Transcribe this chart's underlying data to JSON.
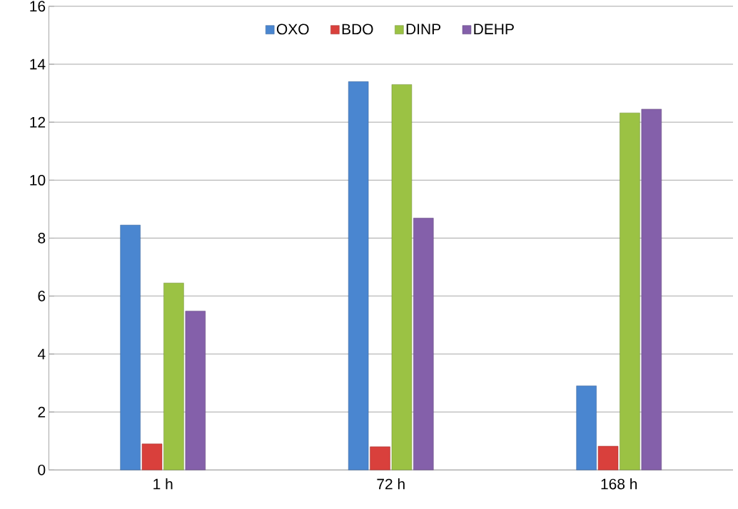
{
  "chart_data": {
    "type": "bar",
    "categories": [
      "1 h",
      "72 h",
      "168 h"
    ],
    "series": [
      {
        "name": "OXO",
        "color": "#4a86d0",
        "values": [
          8.45,
          13.4,
          2.9
        ]
      },
      {
        "name": "BDO",
        "color": "#d9403c",
        "values": [
          0.9,
          0.8,
          0.82
        ]
      },
      {
        "name": "DINP",
        "color": "#9bc244",
        "values": [
          6.45,
          13.3,
          12.32
        ]
      },
      {
        "name": "DEHP",
        "color": "#8460aa",
        "values": [
          5.48,
          8.69,
          12.45
        ]
      }
    ],
    "ylim": [
      0,
      16
    ],
    "yticks": [
      0,
      2,
      4,
      6,
      8,
      10,
      12,
      14,
      16
    ],
    "grid": "y",
    "legend": "top"
  }
}
